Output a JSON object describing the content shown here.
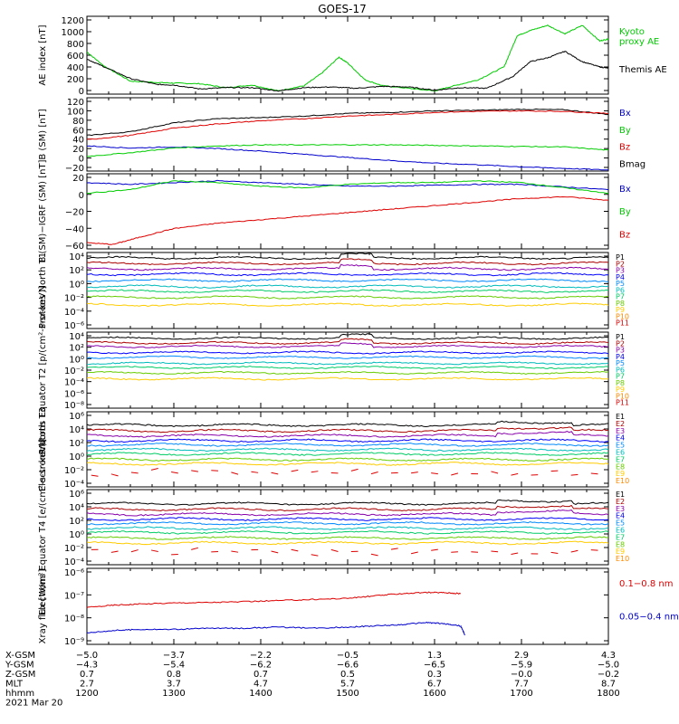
{
  "title": "GOES-17",
  "colors": {
    "black": "#000000",
    "blue": "#0000cc",
    "green": "#00cc00",
    "red": "#dd0000",
    "brightgreen": "#22dd22",
    "p": [
      "#000000",
      "#aa0000",
      "#8800aa",
      "#0000ff",
      "#0088ff",
      "#00bbbb",
      "#00cc66",
      "#66cc00",
      "#ffcc00",
      "#ff8800",
      "#dd0000"
    ],
    "e": [
      "#000000",
      "#aa0000",
      "#8800aa",
      "#0000ff",
      "#0088ff",
      "#00bbbb",
      "#00cc66",
      "#66cc00",
      "#ffcc00",
      "#ff8800",
      "#dd0000"
    ]
  },
  "chart_data": [
    {
      "type": "line",
      "ylabel": "AE index [nT]",
      "yticks": [
        "1200",
        "1000",
        "800",
        "600",
        "400",
        "200",
        "0"
      ],
      "ylim": [
        0,
        1200
      ],
      "series": [
        {
          "name": "Kyoto proxy AE",
          "color": "green",
          "x": [
            12.0,
            12.2,
            12.5,
            12.8,
            13.0,
            13.3,
            13.6,
            13.9,
            14.2,
            14.5,
            14.7,
            14.9,
            15.0,
            15.2,
            15.4,
            15.7,
            16.0,
            16.2,
            16.5,
            16.8,
            16.95,
            17.1,
            17.3,
            17.5,
            17.7,
            17.9,
            18.0
          ],
          "y": [
            650,
            430,
            200,
            180,
            170,
            160,
            100,
            140,
            50,
            130,
            320,
            570,
            480,
            220,
            130,
            90,
            50,
            120,
            220,
            420,
            900,
            980,
            1060,
            930,
            1060,
            820,
            850
          ]
        },
        {
          "name": "Themis AE",
          "color": "black",
          "x": [
            12.0,
            12.2,
            12.5,
            12.8,
            13.0,
            13.3,
            13.6,
            13.9,
            14.2,
            14.5,
            14.8,
            15.1,
            15.4,
            15.7,
            16.0,
            16.3,
            16.6,
            16.9,
            17.1,
            17.3,
            17.5,
            17.7,
            17.9,
            18.0
          ],
          "y": [
            540,
            420,
            240,
            150,
            140,
            80,
            100,
            100,
            50,
            100,
            110,
            90,
            120,
            110,
            60,
            100,
            90,
            270,
            500,
            560,
            660,
            500,
            420,
            400
          ]
        }
      ],
      "legend": [
        {
          "text": "Kyoto",
          "color": "green"
        },
        {
          "text": "proxy AE",
          "color": "green"
        },
        {
          "text": "Themis AE",
          "color": "black"
        }
      ]
    },
    {
      "type": "line",
      "ylabel": "B (SM) [nT]",
      "yticks": [
        "120",
        "100",
        "80",
        "60",
        "40",
        "20",
        "0",
        "−20"
      ],
      "ylim": [
        -20,
        120
      ],
      "series": [
        {
          "name": "Bmag",
          "color": "black",
          "x": [
            12,
            12.5,
            13,
            13.5,
            14,
            14.5,
            15,
            15.5,
            16,
            16.5,
            17,
            17.5,
            18
          ],
          "y": [
            48,
            55,
            72,
            80,
            82,
            85,
            90,
            92,
            95,
            96,
            98,
            97,
            88
          ]
        },
        {
          "name": "Bx",
          "color": "blue",
          "x": [
            12,
            12.5,
            13,
            13.5,
            14,
            14.5,
            15,
            15.5,
            16,
            16.5,
            17,
            17.5,
            18
          ],
          "y": [
            28,
            24,
            26,
            23,
            18,
            12,
            6,
            0,
            -5,
            -8,
            -12,
            -15,
            -18
          ]
        },
        {
          "name": "By",
          "color": "green",
          "x": [
            12,
            12.5,
            13,
            13.5,
            14,
            14.5,
            15,
            15.5,
            16,
            16.5,
            17,
            17.5,
            18
          ],
          "y": [
            8,
            15,
            24,
            28,
            30,
            30,
            30,
            30,
            29,
            28,
            27,
            26,
            20
          ]
        },
        {
          "name": "Bz",
          "color": "red",
          "x": [
            12,
            12.5,
            13,
            13.5,
            14,
            14.5,
            15,
            15.5,
            16,
            16.5,
            17,
            17.5,
            18
          ],
          "y": [
            40,
            48,
            62,
            70,
            76,
            80,
            85,
            88,
            92,
            94,
            95,
            94,
            90
          ]
        }
      ],
      "legend": [
        {
          "text": "Bx",
          "color": "blue"
        },
        {
          "text": "By",
          "color": "green"
        },
        {
          "text": "Bz",
          "color": "red"
        },
        {
          "text": "Bmag",
          "color": "black"
        }
      ]
    },
    {
      "type": "line",
      "ylabel": "B (SM)−IGRF (SM) [nT]",
      "yticks": [
        "20",
        "0",
        "−20",
        "−40",
        "−60"
      ],
      "ylim": [
        -65,
        20
      ],
      "series": [
        {
          "name": "Bx",
          "color": "blue",
          "x": [
            12,
            12.5,
            13,
            13.5,
            14,
            14.5,
            15,
            15.5,
            16,
            16.5,
            17,
            17.5,
            18
          ],
          "y": [
            10,
            8,
            10,
            12,
            10,
            8,
            6,
            6,
            7,
            8,
            8,
            5,
            2
          ]
        },
        {
          "name": "By",
          "color": "green",
          "x": [
            12,
            12.5,
            13,
            13.5,
            14,
            14.5,
            15,
            15.5,
            16,
            16.5,
            17,
            17.5,
            18
          ],
          "y": [
            -2,
            2,
            12,
            10,
            6,
            4,
            8,
            10,
            10,
            12,
            10,
            4,
            -2
          ]
        },
        {
          "name": "Bz",
          "color": "red",
          "x": [
            12,
            12.3,
            12.6,
            13,
            13.5,
            14,
            14.5,
            15,
            15.5,
            16,
            16.5,
            17,
            17.5,
            18
          ],
          "y": [
            -58,
            -60,
            -52,
            -42,
            -36,
            -32,
            -28,
            -24,
            -20,
            -16,
            -12,
            -8,
            -6,
            -10
          ]
        }
      ],
      "legend": [
        {
          "text": "Bx",
          "color": "blue"
        },
        {
          "text": "By",
          "color": "green"
        },
        {
          "text": "Bz",
          "color": "red"
        }
      ]
    },
    {
      "type": "line",
      "log": true,
      "ylabel": "Protons North T1",
      "yticks": [
        "10⁴",
        "10²",
        "10⁰",
        "10⁻²",
        "10⁻⁴",
        "10⁻⁶"
      ],
      "ylim": [
        -6.8,
        4.4
      ],
      "levels": [
        3.6,
        2.8,
        2.0,
        1.2,
        0.3,
        -0.6,
        -1.3,
        -2.2,
        -3.3
      ],
      "legend": [
        "P1",
        "P2",
        "P3",
        "P4",
        "P5",
        "P6",
        "P7",
        "P8",
        "P9",
        "P10",
        "P11"
      ]
    },
    {
      "type": "line",
      "log": true,
      "ylabel": "Protons Equator T2 [p/(cm²-s-sr-keV)]",
      "yticks": [
        "10⁴",
        "10²",
        "10⁰",
        "10⁻²",
        "10⁻⁴",
        "10⁻⁶",
        "10⁻⁸"
      ],
      "ylim": [
        -8.3,
        4.4
      ],
      "levels": [
        3.4,
        2.6,
        2.0,
        1.0,
        0.2,
        -0.8,
        -1.5,
        -2.4,
        -3.4
      ],
      "legend": [
        "P1",
        "P2",
        "P3",
        "P4",
        "P5",
        "P6",
        "P7",
        "P8",
        "P9",
        "P10",
        "P11"
      ]
    },
    {
      "type": "line",
      "log": true,
      "ylabel": "Electrons North T3",
      "yticks": [
        "10⁶",
        "10⁴",
        "10²",
        "10⁰",
        "10⁻²",
        "10⁻⁴"
      ],
      "ylim": [
        -4.3,
        6.4
      ],
      "levels": [
        4.5,
        3.7,
        3.0,
        2.3,
        1.7,
        1.0,
        0.4,
        -0.4,
        -1.0
      ],
      "legend": [
        "E1",
        "E2",
        "E3",
        "E4",
        "E5",
        "E6",
        "E7",
        "E8",
        "E9",
        "E10"
      ]
    },
    {
      "type": "line",
      "log": true,
      "ylabel": "Electrons Equator T4 [e/(cm²-s-sr-keV)]",
      "yticks": [
        "10⁶",
        "10⁴",
        "10²",
        "10⁰",
        "10⁻²",
        "10⁻⁴"
      ],
      "ylim": [
        -4.3,
        6.4
      ],
      "levels": [
        4.4,
        3.6,
        2.9,
        2.2,
        1.6,
        0.9,
        0.3,
        -0.5,
        -1.2
      ],
      "legend": [
        "E1",
        "E2",
        "E3",
        "E4",
        "E5",
        "E6",
        "E7",
        "E8",
        "E9",
        "E10"
      ]
    },
    {
      "type": "line",
      "log": true,
      "ylabel": "Xray flux [W/m²]",
      "yticks": [
        "10⁻⁶",
        "10⁻⁷",
        "10⁻⁸",
        "10⁻⁹"
      ],
      "ylim": [
        -9.2,
        -5.9
      ],
      "series": [
        {
          "name": "0.1−0.8 nm",
          "color": "red",
          "x": [
            12.0,
            12.3,
            12.6,
            13.0,
            13.4,
            13.8,
            14.2,
            14.6,
            15.0,
            15.3,
            15.6,
            15.9,
            16.1,
            16.3
          ],
          "y": [
            -7.6,
            -7.5,
            -7.45,
            -7.4,
            -7.38,
            -7.35,
            -7.3,
            -7.25,
            -7.2,
            -7.1,
            -7.0,
            -6.95,
            -6.95,
            -7.0
          ]
        },
        {
          "name": "0.05−0.4 nm",
          "color": "blue",
          "x": [
            12.0,
            12.3,
            12.6,
            13.0,
            13.4,
            13.8,
            14.2,
            14.6,
            15.0,
            15.3,
            15.6,
            15.9,
            16.1,
            16.3,
            16.35
          ],
          "y": [
            -8.7,
            -8.6,
            -8.55,
            -8.55,
            -8.5,
            -8.5,
            -8.45,
            -8.5,
            -8.45,
            -8.4,
            -8.35,
            -8.25,
            -8.3,
            -8.4,
            -8.8
          ]
        }
      ],
      "legend": [
        {
          "text": "0.1−0.8 nm",
          "color": "red"
        },
        {
          "text": "0.05−0.4 nm",
          "color": "blue"
        }
      ]
    }
  ],
  "xaxis": {
    "rows": [
      {
        "label": "X-GSM",
        "values": [
          "−5.0",
          "−3.7",
          "−2.2",
          "−0.5",
          "1.3",
          "2.9",
          "4.3"
        ]
      },
      {
        "label": "Y-GSM",
        "values": [
          "−4.3",
          "−5.4",
          "−6.2",
          "−6.6",
          "−6.5",
          "−5.9",
          "−5.0"
        ]
      },
      {
        "label": "Z-GSM",
        "values": [
          "0.7",
          "0.8",
          "0.7",
          "0.5",
          "0.3",
          "−0.0",
          "−0.2"
        ]
      },
      {
        "label": "MLT",
        "values": [
          "2.7",
          "3.7",
          "4.7",
          "5.7",
          "6.7",
          "7.7",
          "8.7"
        ]
      },
      {
        "label": "hhmm",
        "values": [
          "1200",
          "1300",
          "1400",
          "1500",
          "1600",
          "1700",
          "1800"
        ]
      }
    ],
    "date": "2021 Mar 20"
  }
}
